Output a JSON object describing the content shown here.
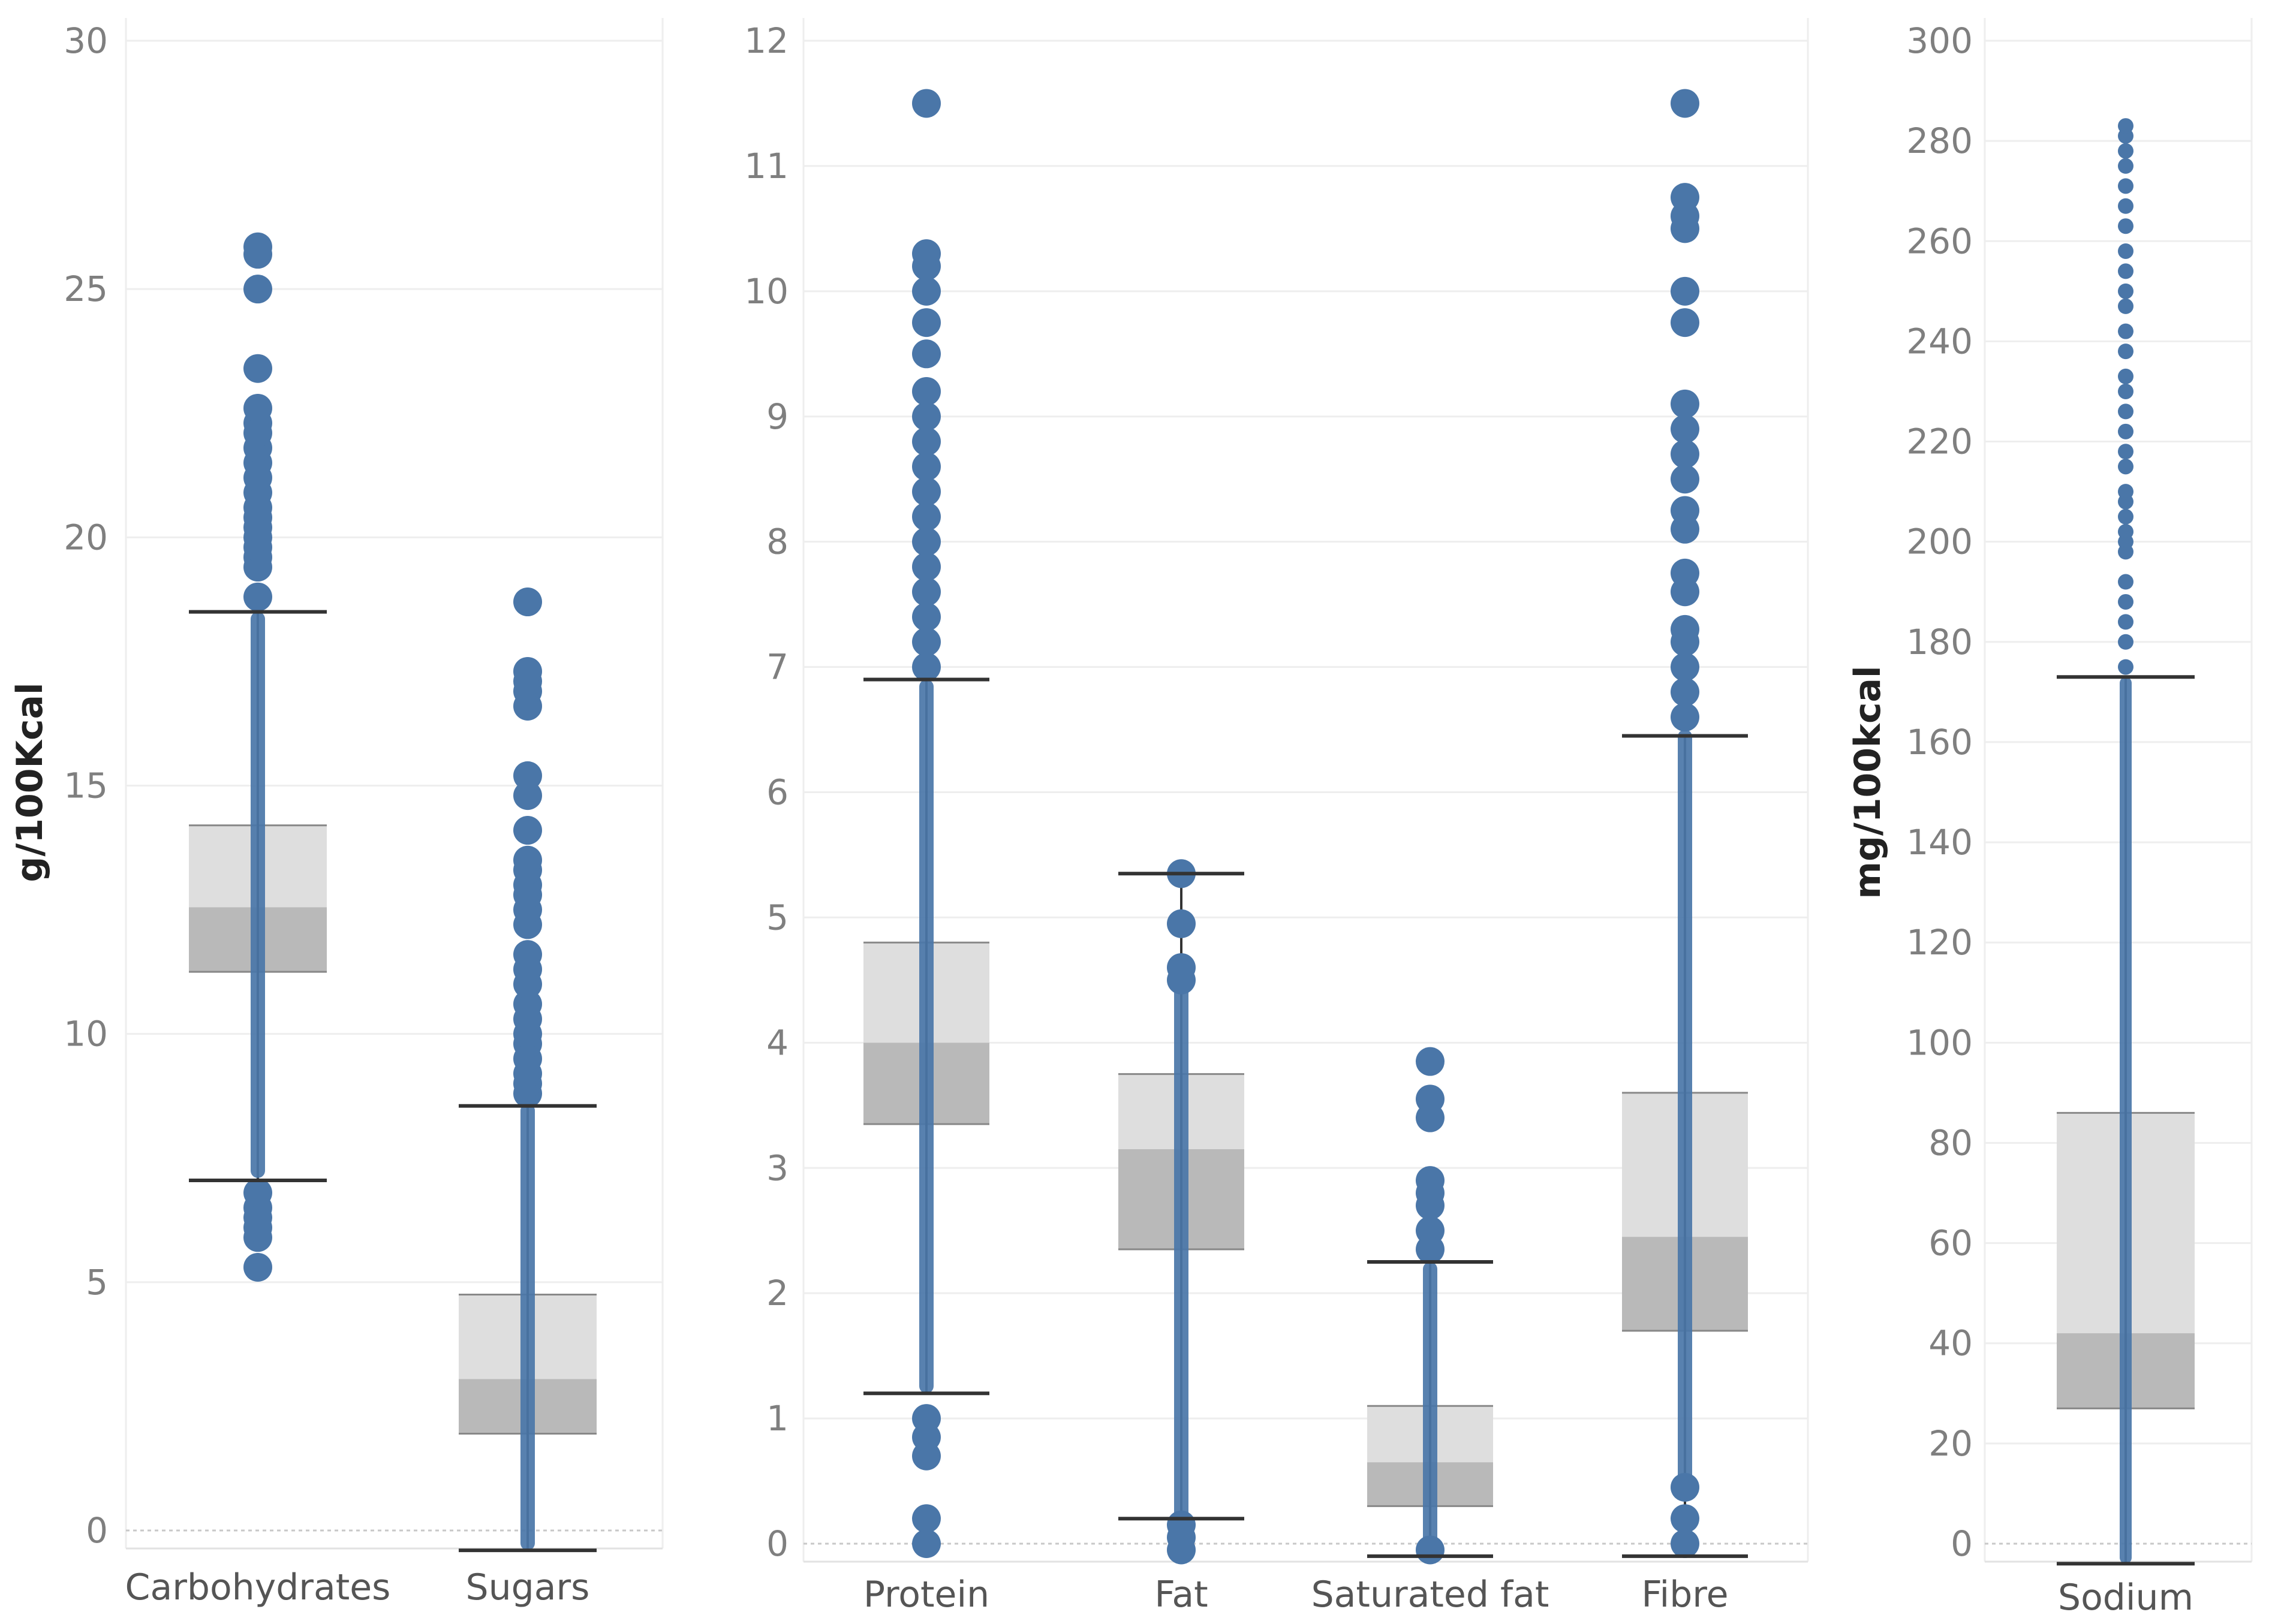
{
  "colors": {
    "points": "#4a76a8",
    "whisker": "#333333",
    "box_upper": "#dedede",
    "box_lower": "#b9b9b9",
    "grid": "#eeeeee",
    "tick_text": "#7f7f7f"
  },
  "chart_data": [
    {
      "type": "box",
      "ylabel": "g/100Kcal",
      "ylim": [
        0,
        30
      ],
      "yticks": [
        0,
        5,
        10,
        15,
        20,
        25,
        30
      ],
      "tick_labels": [
        "0",
        "5",
        "10",
        "15",
        "20",
        "25",
        "30"
      ],
      "categories": [
        "Carbohydrates",
        "Sugars"
      ],
      "boxes": [
        {
          "name": "Carbohydrates",
          "whisker_low": 7.05,
          "q1": 11.25,
          "median": 12.55,
          "q3": 14.2,
          "whisker_high": 18.5,
          "fill": [
            7.1,
            18.5
          ],
          "outliers": [
            5.3,
            5.9,
            6.1,
            6.3,
            6.5,
            6.8,
            18.8,
            19.4,
            19.6,
            19.8,
            20.0,
            20.2,
            20.4,
            20.6,
            20.9,
            21.2,
            21.5,
            21.8,
            22.1,
            22.3,
            22.6,
            23.4,
            25.0,
            25.7,
            25.85
          ]
        },
        {
          "name": "Sugars",
          "whisker_low": -0.4,
          "q1": 1.95,
          "median": 3.05,
          "q3": 4.75,
          "whisker_high": 8.55,
          "fill": [
            -0.4,
            8.6
          ],
          "outliers": [
            8.8,
            9.0,
            9.2,
            9.5,
            9.8,
            10.0,
            10.3,
            10.6,
            11.0,
            11.3,
            11.6,
            12.2,
            12.5,
            12.8,
            13.0,
            13.3,
            13.5,
            14.1,
            14.8,
            15.2,
            16.6,
            16.9,
            17.1,
            17.3,
            18.7
          ]
        }
      ]
    },
    {
      "type": "box",
      "ylabel": "",
      "ylim": [
        0,
        12
      ],
      "yticks": [
        0,
        1,
        2,
        3,
        4,
        5,
        6,
        7,
        8,
        9,
        10,
        11,
        12
      ],
      "tick_labels": [
        "0",
        "1",
        "2",
        "3",
        "4",
        "5",
        "6",
        "7",
        "8",
        "9",
        "10",
        "11",
        "12"
      ],
      "categories": [
        "Protein",
        "Fat",
        "Saturated fat",
        "Fibre"
      ],
      "boxes": [
        {
          "name": "Protein",
          "whisker_low": 1.2,
          "q1": 3.35,
          "median": 4.0,
          "q3": 4.8,
          "whisker_high": 6.9,
          "fill": [
            1.2,
            6.9
          ],
          "outliers": [
            0.0,
            0.2,
            0.7,
            0.85,
            1.0,
            7.0,
            7.2,
            7.4,
            7.6,
            7.8,
            8.0,
            8.2,
            8.4,
            8.6,
            8.8,
            9.0,
            9.2,
            9.5,
            9.75,
            10.0,
            10.2,
            10.3,
            11.5
          ]
        },
        {
          "name": "Fat",
          "whisker_low": 0.2,
          "q1": 2.35,
          "median": 3.15,
          "q3": 3.75,
          "whisker_high": 5.35,
          "fill": [
            -0.1,
            4.7
          ],
          "outliers": [
            -0.05,
            0.05,
            0.15,
            4.5,
            4.6,
            4.95,
            5.35
          ]
        },
        {
          "name": "Saturated fat",
          "whisker_low": -0.1,
          "q1": 0.3,
          "median": 0.65,
          "q3": 1.1,
          "whisker_high": 2.25,
          "fill": [
            -0.1,
            2.25
          ],
          "outliers": [
            -0.05,
            2.35,
            2.5,
            2.7,
            2.8,
            2.9,
            3.4,
            3.55,
            3.85
          ]
        },
        {
          "name": "Fibre",
          "whisker_low": -0.1,
          "q1": 1.7,
          "median": 2.45,
          "q3": 3.6,
          "whisker_high": 6.45,
          "fill": [
            0.4,
            6.5
          ],
          "outliers": [
            0.0,
            0.2,
            0.45,
            6.6,
            6.8,
            7.0,
            7.2,
            7.3,
            7.6,
            7.75,
            8.1,
            8.25,
            8.5,
            8.7,
            8.9,
            9.1,
            9.75,
            10.0,
            10.5,
            10.6,
            10.75,
            11.5
          ]
        }
      ]
    },
    {
      "type": "box",
      "ylabel": "mg/100kcal",
      "ylim": [
        0,
        300
      ],
      "yticks": [
        0,
        20,
        40,
        60,
        80,
        100,
        120,
        140,
        160,
        180,
        200,
        220,
        240,
        260,
        280,
        300
      ],
      "tick_labels": [
        "0",
        "20",
        "40",
        "60",
        "80",
        "100",
        "120",
        "140",
        "160",
        "180",
        "200",
        "220",
        "240",
        "260",
        "280",
        "300"
      ],
      "categories": [
        "Sodium"
      ],
      "boxes": [
        {
          "name": "Sodium",
          "whisker_low": -4,
          "q1": 27,
          "median": 42,
          "q3": 86,
          "whisker_high": 173,
          "fill": [
            -4,
            173
          ],
          "outliers": [
            175,
            180,
            184,
            188,
            192,
            198,
            200,
            202,
            205,
            208,
            210,
            215,
            218,
            222,
            226,
            230,
            233,
            238,
            242,
            247,
            250,
            254,
            258,
            263,
            267,
            271,
            275,
            278,
            281,
            283
          ]
        }
      ]
    }
  ]
}
